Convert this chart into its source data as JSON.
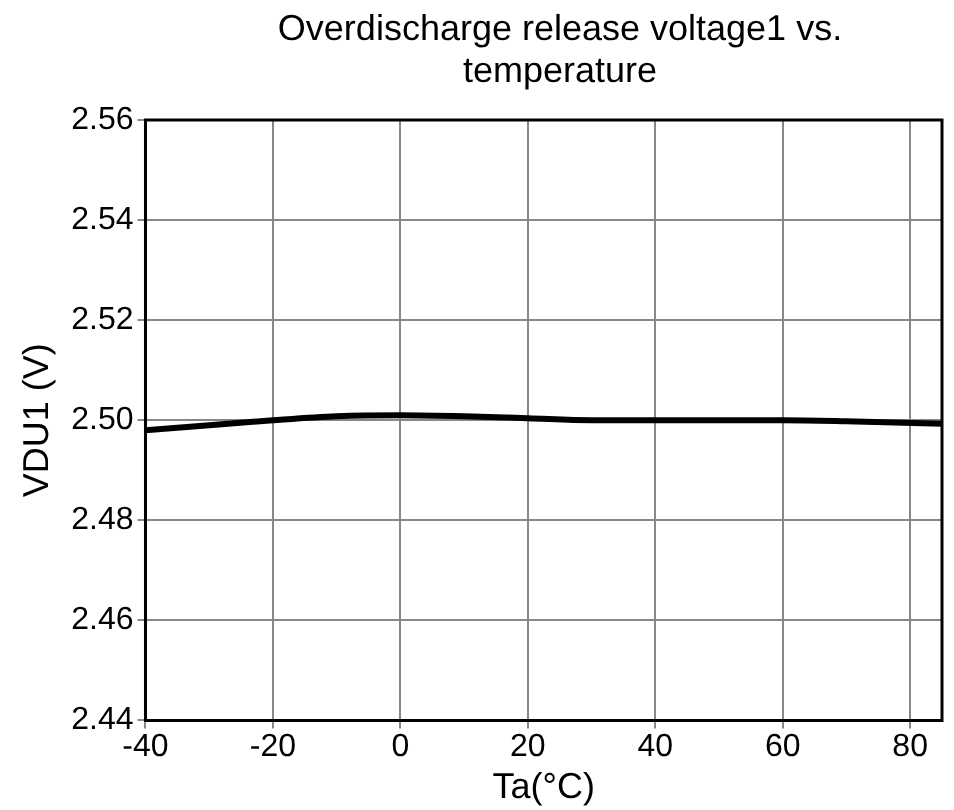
{
  "chart_data": {
    "type": "line",
    "title": "Overdischarge release voltage1 vs. temperature",
    "xlabel": "Ta(°C)",
    "ylabel": "VDU1 (V)",
    "x": [
      -40,
      -30,
      -20,
      -10,
      0,
      10,
      20,
      30,
      40,
      50,
      60,
      70,
      85
    ],
    "series": [
      {
        "color": "#000000",
        "values": [
          2.498,
          2.499,
          2.5,
          2.5008,
          2.501,
          2.5008,
          2.5004,
          2.5,
          2.5,
          2.5,
          2.5,
          2.4998,
          2.4993
        ]
      }
    ],
    "xlim": [
      -40,
      85
    ],
    "xticks": [
      -40,
      -20,
      0,
      20,
      40,
      60,
      80
    ],
    "ylim": [
      2.44,
      2.56
    ],
    "yticks": [
      2.44,
      2.46,
      2.48,
      {
        "value": 2.5,
        "label": "2.50"
      },
      2.52,
      2.54,
      2.56
    ],
    "grid": true,
    "marker": "none",
    "line_style": "solid"
  }
}
